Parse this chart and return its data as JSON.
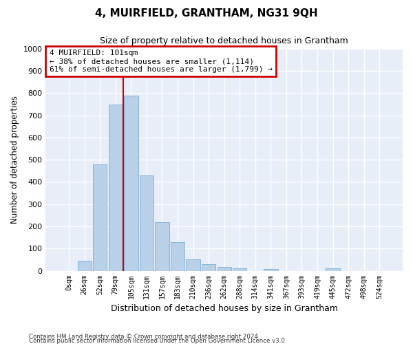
{
  "title": "4, MUIRFIELD, GRANTHAM, NG31 9QH",
  "subtitle": "Size of property relative to detached houses in Grantham",
  "xlabel": "Distribution of detached houses by size in Grantham",
  "ylabel": "Number of detached properties",
  "bar_labels": [
    "0sqm",
    "26sqm",
    "52sqm",
    "79sqm",
    "105sqm",
    "131sqm",
    "157sqm",
    "183sqm",
    "210sqm",
    "236sqm",
    "262sqm",
    "288sqm",
    "314sqm",
    "341sqm",
    "367sqm",
    "393sqm",
    "419sqm",
    "445sqm",
    "472sqm",
    "498sqm",
    "524sqm"
  ],
  "bar_values": [
    0,
    45,
    480,
    750,
    790,
    430,
    220,
    128,
    52,
    30,
    17,
    12,
    0,
    8,
    0,
    0,
    0,
    10,
    0,
    0,
    0
  ],
  "bar_color": "#b8d0e8",
  "bar_edgecolor": "#7aafd4",
  "vline_color": "#cc0000",
  "annotation_text": "4 MUIRFIELD: 101sqm\n← 38% of detached houses are smaller (1,114)\n61% of semi-detached houses are larger (1,799) →",
  "annotation_box_edgecolor": "#cc0000",
  "ylim": [
    0,
    1000
  ],
  "yticks": [
    0,
    100,
    200,
    300,
    400,
    500,
    600,
    700,
    800,
    900,
    1000
  ],
  "plot_bgcolor": "#e8eef8",
  "grid_color": "#ffffff",
  "footnote_line1": "Contains HM Land Registry data © Crown copyright and database right 2024.",
  "footnote_line2": "Contains public sector information licensed under the Open Government Licence v3.0."
}
